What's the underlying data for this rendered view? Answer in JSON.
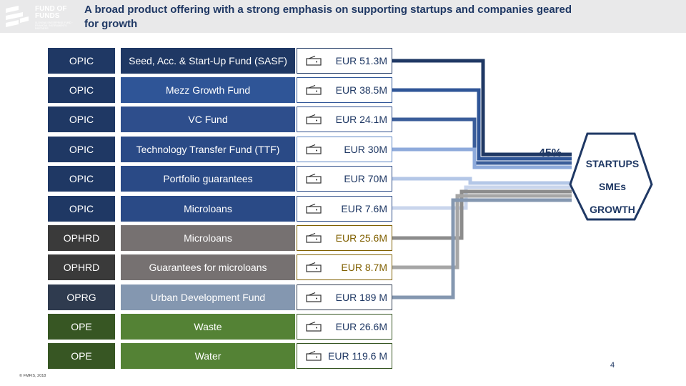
{
  "header": {
    "logo_title": "FUND OF FUNDS",
    "logo_subtitle": "SLOVENE ENTERPRISE FUND · FINANCIAL INSTRUMENTS PARTNERS",
    "title": "A broad product offering with a strong emphasis on supporting startups and companies geared for growth"
  },
  "rows": [
    {
      "program": "OPIC",
      "product": "Seed, Acc. & Start-Up Fund (SASF)",
      "amount": "EUR 51.3M",
      "program_color": "#1f3864",
      "product_color": "#1f3864",
      "border_color": "#1f3864",
      "line_color": "#1f3864"
    },
    {
      "program": "OPIC",
      "product": "Mezz Growth Fund",
      "amount": "EUR 38.5M",
      "program_color": "#1f3864",
      "product_color": "#2f5597",
      "border_color": "#2f5597",
      "line_color": "#2f5597"
    },
    {
      "program": "OPIC",
      "product": "VC Fund",
      "amount": "EUR 24.1M",
      "program_color": "#1f3864",
      "product_color": "#2e4e8c",
      "border_color": "#2e4e8c",
      "line_color": "#3a5d9a"
    },
    {
      "program": "OPIC",
      "product": "Technology Transfer Fund (TTF)",
      "amount": "EUR 30M",
      "program_color": "#1f3864",
      "product_color": "#2a4a86",
      "border_color": "#5b84c4",
      "line_color": "#8eaadb"
    },
    {
      "program": "OPIC",
      "product": "Portfolio guarantees",
      "amount": "EUR 70M",
      "program_color": "#1f3864",
      "product_color": "#2a4a86",
      "border_color": "#2a4a86",
      "line_color": "#b4c7e7"
    },
    {
      "program": "OPIC",
      "product": "Microloans",
      "amount": "EUR 7.6M",
      "program_color": "#1f3864",
      "product_color": "#2a4a86",
      "border_color": "#2a4a86",
      "line_color": "#c9d5ec"
    },
    {
      "program": "OPHRD",
      "product": "Microloans",
      "amount": "EUR 25.6M",
      "program_color": "#3a3a3a",
      "product_color": "#767171",
      "border_color": "#806000",
      "line_color": "#8c8c8c",
      "text_color": "#806000"
    },
    {
      "program": "OPHRD",
      "product": "Guarantees for microloans",
      "amount": "EUR 8.7M",
      "program_color": "#3a3a3a",
      "product_color": "#767171",
      "border_color": "#806000",
      "line_color": "#a6a6a6",
      "text_color": "#806000"
    },
    {
      "program": "OPRG",
      "product": "Urban Development Fund",
      "amount": "EUR 189 M",
      "program_color": "#2f3b4f",
      "product_color": "#8497b0",
      "border_color": "#2f3b4f",
      "line_color": "#8497b0"
    },
    {
      "program": "OPE",
      "product": "Waste",
      "amount": "EUR 26.6M",
      "program_color": "#375623",
      "product_color": "#548235",
      "border_color": "#375623",
      "line_color": "#548235"
    },
    {
      "program": "OPE",
      "product": "Water",
      "amount": "EUR 119.6 M",
      "program_color": "#375623",
      "product_color": "#548235",
      "border_color": "#375623",
      "line_color": "#548235"
    }
  ],
  "summary": {
    "percent": "45%",
    "hex_lines": [
      "STARTUPS",
      "SMEs",
      "GROWTH"
    ],
    "hex_color": "#1f3864"
  },
  "footer": {
    "copyright": "© FMFIS, 2018",
    "page_number": "4"
  }
}
